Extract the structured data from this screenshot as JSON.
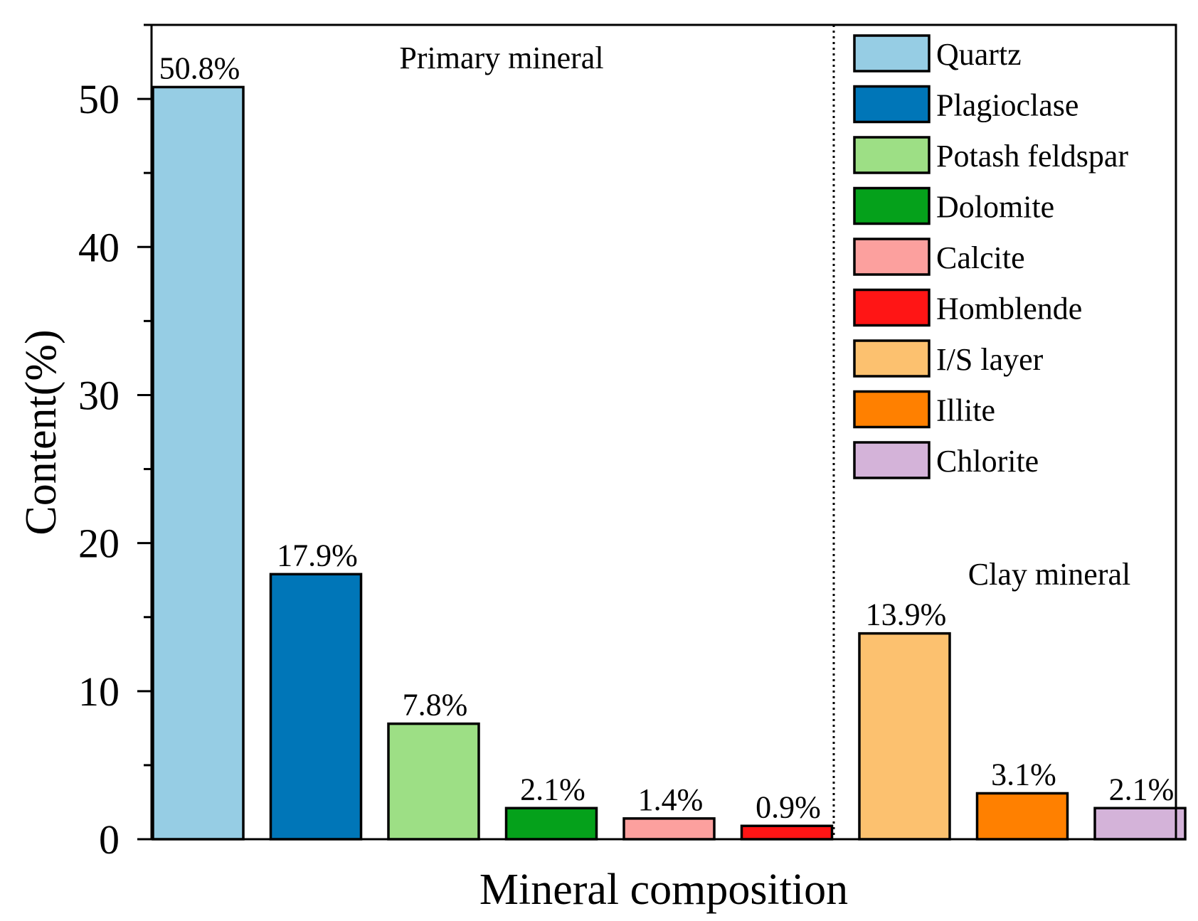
{
  "chart_data": {
    "type": "bar",
    "xlabel": "Mineral composition",
    "ylabel": "Content(%)",
    "ylim": [
      0,
      55
    ],
    "yticks": [
      0,
      10,
      20,
      30,
      40,
      50
    ],
    "grid": false,
    "legend_position": "top-right",
    "categories": [
      "Quartz",
      "Plagioclase",
      "Potash feldspar",
      "Dolomite",
      "Calcite",
      "Homblende",
      "I/S layer",
      "Illite",
      "Chlorite"
    ],
    "values": [
      50.8,
      17.9,
      7.8,
      2.1,
      1.4,
      0.9,
      13.9,
      3.1,
      2.1
    ],
    "value_labels": [
      "50.8%",
      "17.9%",
      "7.8%",
      "2.1%",
      "1.4%",
      "0.9%",
      "13.9%",
      "3.1%",
      "2.1%"
    ],
    "colors": [
      "#96cde4",
      "#0076b8",
      "#9ddf85",
      "#05a11b",
      "#fca09e",
      "#ff1515",
      "#fcc16f",
      "#ff8000",
      "#d4b3d9"
    ],
    "groups": [
      {
        "name": "Primary mineral",
        "count": 6
      },
      {
        "name": "Clay mineral",
        "count": 3
      }
    ]
  }
}
